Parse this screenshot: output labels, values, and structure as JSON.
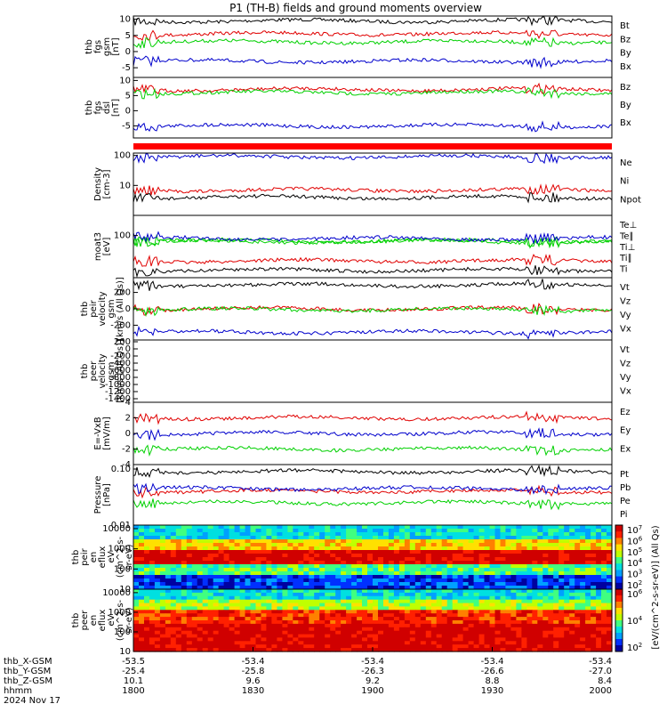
{
  "title": "P1 (TH-B) fields and ground moments overview",
  "colors": {
    "black": "#000000",
    "red": "#e00000",
    "green": "#00d000",
    "blue": "#0000cc"
  },
  "chart_data": {
    "type": "line",
    "title": "P1 (TH-B) fields and ground moments overview",
    "x_ticks": [
      "1800",
      "1830",
      "1900",
      "1930",
      "2000"
    ],
    "date": "2024 Nov 17",
    "footer_rows": [
      {
        "label": "thb_X-GSM",
        "values": [
          "-53.5",
          "-53.4",
          "-53.4",
          "-53.4",
          "-53.4"
        ]
      },
      {
        "label": "thb_Y-GSM",
        "values": [
          "-25.4",
          "-25.8",
          "-26.3",
          "-26.6",
          "-27.0"
        ]
      },
      {
        "label": "thb_Z-GSM",
        "values": [
          "10.1",
          "9.6",
          "9.2",
          "8.8",
          "8.4"
        ]
      },
      {
        "label": "hhmm",
        "values": [
          "1800",
          "1830",
          "1900",
          "1930",
          "2000"
        ]
      }
    ],
    "panels": [
      {
        "id": "fgs",
        "ylabel": [
          "thb",
          "fgs",
          "gsm",
          "[nT]"
        ],
        "ylim": [
          -8,
          11
        ],
        "yticks": [
          "10",
          "5",
          "0",
          "-5"
        ],
        "ytick_vals": [
          10,
          5,
          0,
          -5
        ],
        "log": false,
        "series": [
          {
            "name": "Bt",
            "color": "black",
            "level": 9.5
          },
          {
            "name": "Bz",
            "color": "red",
            "level": 5.5
          },
          {
            "name": "By",
            "color": "green",
            "level": 3
          },
          {
            "name": "Bx",
            "color": "blue",
            "level": -3
          }
        ]
      },
      {
        "id": "fgs_dsl",
        "ylabel": [
          "thb",
          "fgs",
          "dsl",
          "[nT]"
        ],
        "ylim": [
          -9,
          11
        ],
        "yticks": [
          "10",
          "5",
          "0",
          "-5"
        ],
        "ytick_vals": [
          10,
          5,
          0,
          -5
        ],
        "log": false,
        "series": [
          {
            "name": "Bz",
            "color": "red",
            "level": 7
          },
          {
            "name": "By",
            "color": "green",
            "level": 6
          },
          {
            "name": "Bx",
            "color": "blue",
            "level": -5
          }
        ]
      },
      {
        "id": "density",
        "ylabel": [
          "Density",
          "[cm-3]"
        ],
        "ylim": [
          1,
          120
        ],
        "yticks": [
          "100",
          "10"
        ],
        "ytick_vals": [
          100,
          10
        ],
        "log": true,
        "series": [
          {
            "name": "Ne",
            "color": "red",
            "level": 7
          },
          {
            "name": "Ni",
            "color": "black",
            "level": 4
          },
          {
            "name": "Npot",
            "color": "blue",
            "level": 90
          }
        ]
      },
      {
        "id": "temp",
        "ylabel": [
          "moat3",
          "[eV]"
        ],
        "ylim": [
          10,
          300
        ],
        "yticks": [
          "100"
        ],
        "ytick_vals": [
          100
        ],
        "log": true,
        "series": [
          {
            "name": "Te⊥",
            "color": "red",
            "level": 25
          },
          {
            "name": "Te∥",
            "color": "black",
            "level": 15
          },
          {
            "name": "Ti⊥",
            "color": "green",
            "level": 75
          },
          {
            "name": "Ti∥",
            "color": "green",
            "level": 72
          },
          {
            "name": "Ti",
            "color": "blue",
            "level": 85
          }
        ]
      },
      {
        "id": "peir_vel",
        "ylabel": [
          "thb",
          "peir",
          "velocity",
          "gsm",
          "[km/s (All Qs)]"
        ],
        "ylim": [
          -380,
          380
        ],
        "yticks": [
          "200",
          "0",
          "-200"
        ],
        "ytick_vals": [
          200,
          0,
          -200
        ],
        "log": false,
        "series": [
          {
            "name": "Vt",
            "color": "black",
            "level": 290
          },
          {
            "name": "Vz",
            "color": "red",
            "level": 0
          },
          {
            "name": "Vy",
            "color": "green",
            "level": -10
          },
          {
            "name": "Vx",
            "color": "blue",
            "level": -285
          }
        ]
      },
      {
        "id": "peer_vel",
        "ylabel": [
          "thb",
          "peer",
          "velocity",
          "gsm",
          "[km/s (All Qs)]"
        ],
        "ylim": [
          -1500,
          250
        ],
        "yticks": [
          "200",
          "0",
          "-200",
          "-400",
          "-600",
          "-800",
          "-1000",
          "-1200",
          "-1400"
        ],
        "ytick_vals": [
          200,
          0,
          -200,
          -400,
          -600,
          -800,
          -1000,
          -1200,
          -1400
        ],
        "log": false,
        "series": [
          {
            "name": "Vt",
            "color": "black",
            "level": null
          },
          {
            "name": "Vz",
            "color": "red",
            "level": null
          },
          {
            "name": "Vy",
            "color": "green",
            "level": null
          },
          {
            "name": "Vx",
            "color": "blue",
            "level": null
          }
        ]
      },
      {
        "id": "efield",
        "ylabel": [
          "E=-VxB",
          "[mV/m]"
        ],
        "ylim": [
          -4,
          4
        ],
        "yticks": [
          "4",
          "2",
          "0",
          "-2",
          "-4"
        ],
        "ytick_vals": [
          4,
          2,
          0,
          -2,
          -4
        ],
        "log": false,
        "series": [
          {
            "name": "Ez",
            "color": "red",
            "level": 2
          },
          {
            "name": "Ey",
            "color": "blue",
            "level": 0
          },
          {
            "name": "Ex",
            "color": "green",
            "level": -2
          }
        ]
      },
      {
        "id": "pressure",
        "ylabel": [
          "Pressure",
          "[nPa]"
        ],
        "ylim": [
          0.01,
          0.12
        ],
        "yticks": [
          "0.10",
          "0.01"
        ],
        "ytick_vals": [
          0.1,
          0.01
        ],
        "log": true,
        "series": [
          {
            "name": "Pt",
            "color": "black",
            "level": 0.09
          },
          {
            "name": "Pb",
            "color": "red",
            "level": 0.04
          },
          {
            "name": "Pe",
            "color": "green",
            "level": 0.025
          },
          {
            "name": "Pi",
            "color": "blue",
            "level": 0.045
          }
        ]
      }
    ],
    "spectrograms": [
      {
        "id": "peir",
        "ylabel": [
          "thb",
          "peir",
          "en",
          "eflux",
          "eV",
          "(cm^2-s-",
          "sr-eV)"
        ],
        "yticks": [
          "10000",
          "1000",
          "100",
          "10"
        ],
        "ytick_vals": [
          10000,
          1000,
          100,
          10
        ],
        "colorbar_ticks": [
          "10^7",
          "10^6",
          "10^5",
          "10^4",
          "10^3",
          "10^2"
        ]
      },
      {
        "id": "peer",
        "ylabel": [
          "thb",
          "peer",
          "en",
          "eflux",
          "eV",
          "(cm^2-s-",
          "sr-eV)"
        ],
        "yticks": [
          "10000",
          "1000",
          "100",
          "10"
        ],
        "ytick_vals": [
          10000,
          1000,
          100,
          10
        ],
        "colorbar_ticks": [
          "10^6",
          "10^4",
          "10^2"
        ]
      }
    ],
    "colorbar_label": "[eV/(cm^2-s-sr-eV)] (All Qs)"
  }
}
